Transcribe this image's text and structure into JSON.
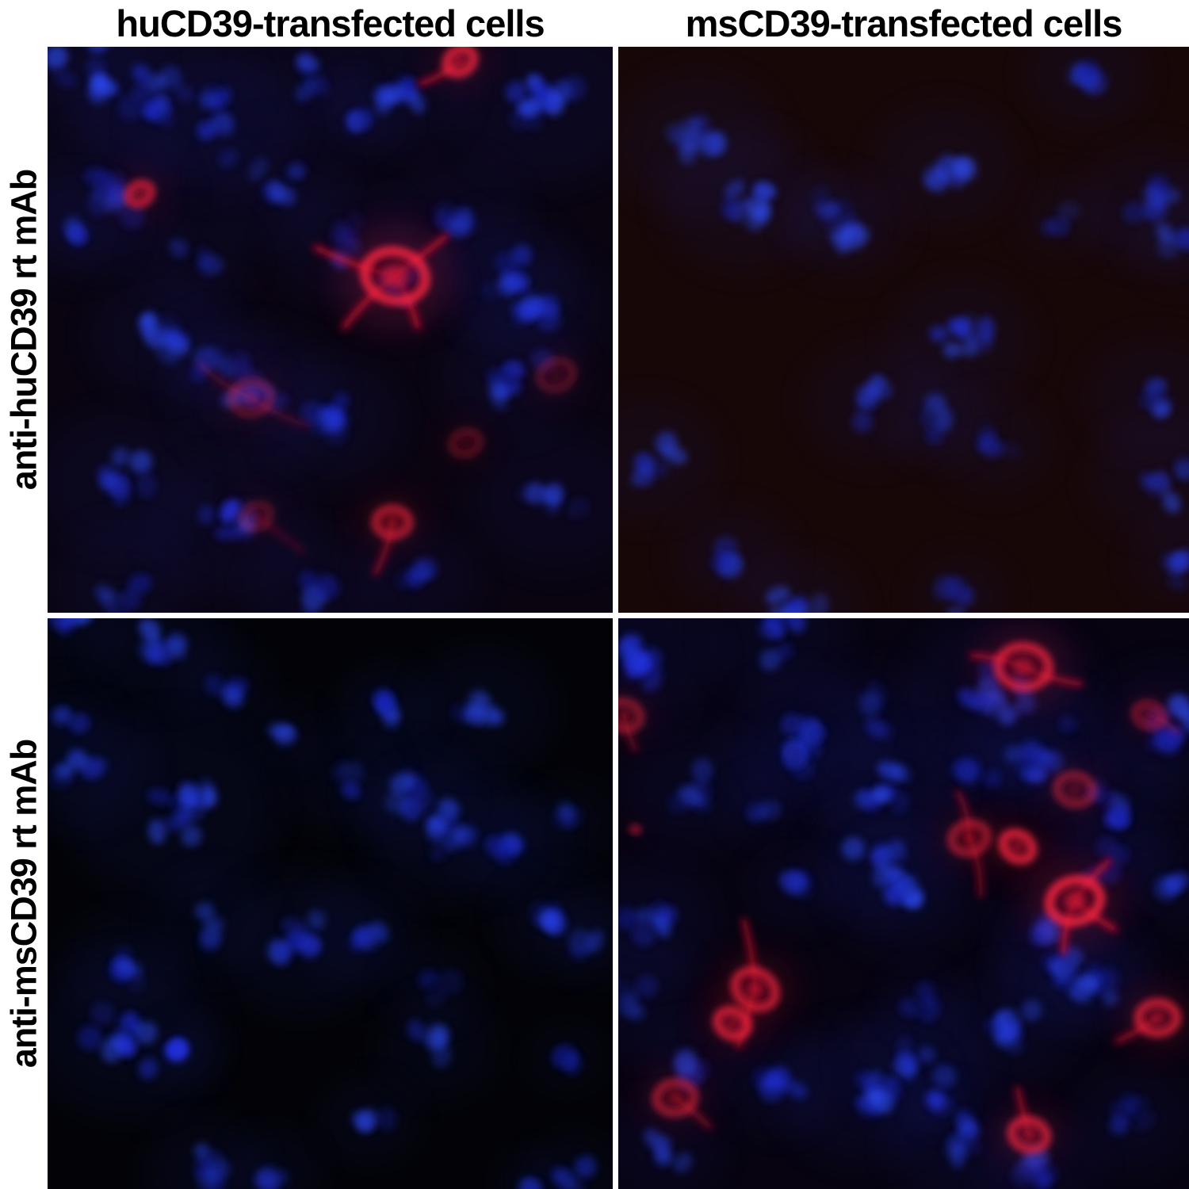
{
  "figure": {
    "col_headers": [
      "huCD39-transfected cells",
      "msCD39-transfected cells"
    ],
    "row_labels": [
      "anti-huCD39 rt mAb",
      "anti-msCD39 rt mAb"
    ],
    "colors": {
      "label_text": "#000000",
      "gutter": "#ffffff",
      "nucleus_shades": [
        "#1722b8",
        "#2133e2",
        "#2b45f2",
        "#121a88",
        "#3050ff"
      ],
      "haze": "#1b2bb0",
      "red_bright": "#ff2742",
      "red_mid": "#e0142e",
      "red_glow": "#c00e24",
      "red_fill": "#400812"
    },
    "panels": [
      {
        "id": "huCD39-cells_anti-huCD39-mAb",
        "col": 0,
        "row": 0,
        "red_staining_positive": true,
        "bg": "#0a0410",
        "clusters": [
          [
            7,
            4,
            8,
            6,
            0.75
          ],
          [
            20,
            8,
            10,
            8,
            0.65
          ],
          [
            30,
            14,
            8,
            7,
            0.6
          ],
          [
            45,
            6,
            5,
            5,
            0.6
          ],
          [
            62,
            8,
            8,
            6,
            0.7
          ],
          [
            88,
            10,
            12,
            8,
            0.7
          ],
          [
            55,
            13,
            4,
            4,
            0.5
          ],
          [
            40,
            24,
            6,
            6,
            0.5
          ],
          [
            10,
            26,
            9,
            7,
            0.65
          ],
          [
            5,
            32,
            5,
            5,
            0.5
          ],
          [
            72,
            30,
            6,
            6,
            0.5
          ],
          [
            26,
            38,
            4,
            5,
            0.45
          ],
          [
            52,
            34,
            5,
            6,
            0.55
          ],
          [
            62,
            42,
            6,
            5,
            0.8
          ],
          [
            80,
            40,
            8,
            6,
            0.6
          ],
          [
            86,
            46,
            7,
            6,
            0.6
          ],
          [
            20,
            51,
            8,
            6,
            0.6
          ],
          [
            30,
            56,
            5,
            5,
            0.5
          ],
          [
            37,
            62,
            8,
            7,
            0.6
          ],
          [
            50,
            66,
            8,
            6,
            0.65
          ],
          [
            82,
            58,
            8,
            6,
            0.6
          ],
          [
            13,
            77,
            8,
            7,
            0.6
          ],
          [
            32,
            85,
            8,
            7,
            0.65
          ],
          [
            90,
            80,
            6,
            7,
            0.5
          ],
          [
            13,
            95,
            6,
            6,
            0.55
          ],
          [
            48,
            96,
            5,
            6,
            0.5
          ],
          [
            66,
            94,
            5,
            5,
            0.5
          ]
        ],
        "red_cells": [
          [
            61.5,
            40.5,
            5.5,
            1.0,
            [
              [
                -14,
                -5
              ],
              [
                9,
                -7
              ],
              [
                4,
                9
              ],
              [
                -9,
                9
              ]
            ]
          ],
          [
            73,
            2.5,
            2.6,
            0.9,
            [
              [
                -7,
                4
              ]
            ]
          ],
          [
            16.3,
            26,
            2.2,
            0.85,
            []
          ],
          [
            36,
            62,
            3.5,
            0.35,
            [
              [
                -9,
                -6
              ],
              [
                10,
                5
              ]
            ]
          ],
          [
            61,
            84,
            3,
            0.7,
            [
              [
                -3,
                9
              ]
            ]
          ],
          [
            74,
            70,
            2.5,
            0.3,
            []
          ],
          [
            90,
            58,
            3,
            0.3,
            []
          ],
          [
            37,
            83,
            2.5,
            0.3,
            [
              [
                8,
                6
              ]
            ]
          ]
        ]
      },
      {
        "id": "msCD39-cells_anti-huCD39-mAb",
        "col": 1,
        "row": 0,
        "red_staining_positive": false,
        "bg": "#170707",
        "clusters": [
          [
            14,
            17,
            8,
            7,
            0.6
          ],
          [
            22,
            27,
            8,
            7,
            0.6
          ],
          [
            40,
            32,
            5,
            5,
            0.5
          ],
          [
            57,
            21,
            6,
            6,
            0.6
          ],
          [
            82,
            5,
            5,
            5,
            0.6
          ],
          [
            93,
            28,
            6,
            6,
            0.55
          ],
          [
            99,
            33,
            4,
            5,
            0.5
          ],
          [
            37,
            29,
            4,
            4,
            0.5
          ],
          [
            78,
            30,
            4,
            4,
            0.4
          ],
          [
            5,
            73,
            6,
            6,
            0.6
          ],
          [
            60,
            52,
            8,
            6,
            0.6
          ],
          [
            45,
            63,
            6,
            6,
            0.55
          ],
          [
            56,
            66,
            4,
            4,
            0.7
          ],
          [
            66,
            70,
            4,
            5,
            0.45
          ],
          [
            94,
            62,
            6,
            6,
            0.5
          ],
          [
            95,
            76,
            6,
            6,
            0.55
          ],
          [
            20,
            90,
            5,
            5,
            0.55
          ],
          [
            32,
            99,
            6,
            5,
            0.6
          ],
          [
            98,
            91,
            4,
            4,
            0.5
          ],
          [
            60,
            97,
            4,
            4,
            0.45
          ]
        ],
        "red_cells": []
      },
      {
        "id": "huCD39-cells_anti-msCD39-mAb",
        "col": 0,
        "row": 1,
        "red_staining_positive": false,
        "bg": "#030307",
        "clusters": [
          [
            5,
            2,
            4,
            4,
            0.6
          ],
          [
            20,
            5,
            8,
            6,
            0.65
          ],
          [
            31,
            12,
            4,
            4,
            0.55
          ],
          [
            3,
            18,
            4,
            4,
            0.5
          ],
          [
            6,
            26,
            6,
            6,
            0.55
          ],
          [
            22,
            33,
            12,
            9,
            0.7
          ],
          [
            42,
            20,
            3,
            3,
            0.5
          ],
          [
            60,
            16,
            4,
            4,
            0.9
          ],
          [
            77,
            16,
            7,
            6,
            0.6
          ],
          [
            52,
            28,
            4,
            5,
            0.45
          ],
          [
            64,
            31,
            6,
            5,
            0.6
          ],
          [
            71,
            37,
            9,
            7,
            0.7
          ],
          [
            81,
            39,
            5,
            5,
            0.55
          ],
          [
            92,
            36,
            3,
            4,
            0.4
          ],
          [
            29,
            53,
            4,
            5,
            0.45
          ],
          [
            45,
            57,
            8,
            7,
            0.65
          ],
          [
            55,
            55,
            5,
            5,
            0.55
          ],
          [
            13,
            61,
            6,
            5,
            0.55
          ],
          [
            14,
            73,
            11,
            8,
            0.65
          ],
          [
            24,
            76,
            3,
            3,
            0.85
          ],
          [
            68,
            64,
            3,
            4,
            0.4
          ],
          [
            69,
            75,
            5,
            5,
            0.45
          ],
          [
            90,
            53,
            6,
            5,
            0.6
          ],
          [
            97,
            56,
            3,
            4,
            0.45
          ],
          [
            92,
            77,
            3,
            3,
            0.5
          ],
          [
            57,
            88,
            4,
            4,
            0.55
          ],
          [
            28,
            97,
            6,
            5,
            0.6
          ],
          [
            93,
            98,
            4,
            4,
            0.5
          ],
          [
            86,
            99,
            3,
            3,
            0.45
          ],
          [
            40,
            97,
            4,
            4,
            0.5
          ]
        ],
        "red_cells": []
      },
      {
        "id": "msCD39-cells_anti-msCD39-mAb",
        "col": 1,
        "row": 1,
        "red_staining_positive": true,
        "bg": "#070310",
        "clusters": [
          [
            3,
            7,
            9,
            7,
            0.75
          ],
          [
            28,
            3,
            6,
            6,
            0.6
          ],
          [
            33,
            22,
            9,
            7,
            0.75
          ],
          [
            30,
            24,
            3,
            3,
            1.0
          ],
          [
            13,
            30,
            5,
            6,
            0.55
          ],
          [
            45,
            17,
            4,
            5,
            0.5
          ],
          [
            47,
            30,
            7,
            6,
            0.7
          ],
          [
            46,
            42,
            6,
            6,
            0.65
          ],
          [
            50,
            48,
            7,
            6,
            0.75
          ],
          [
            67,
            13,
            10,
            8,
            0.7
          ],
          [
            74,
            22,
            6,
            6,
            0.6
          ],
          [
            73,
            27,
            3,
            3,
            0.9
          ],
          [
            62,
            27,
            4,
            5,
            0.5
          ],
          [
            96,
            19,
            7,
            6,
            0.7
          ],
          [
            87,
            33,
            7,
            6,
            0.65
          ],
          [
            85,
            43,
            5,
            5,
            0.5
          ],
          [
            75,
            55,
            5,
            5,
            0.5
          ],
          [
            79,
            61,
            7,
            6,
            0.65
          ],
          [
            85,
            64,
            6,
            5,
            0.6
          ],
          [
            68,
            72,
            7,
            6,
            0.65
          ],
          [
            53,
            67,
            3,
            3,
            0.8
          ],
          [
            52,
            78,
            6,
            6,
            0.6
          ],
          [
            43,
            83,
            9,
            7,
            0.7
          ],
          [
            60,
            93,
            7,
            6,
            0.65
          ],
          [
            74,
            96,
            6,
            5,
            0.6
          ],
          [
            28,
            81,
            5,
            5,
            0.6
          ],
          [
            5,
            53,
            7,
            6,
            0.6
          ],
          [
            2,
            66,
            5,
            6,
            0.55
          ],
          [
            8,
            93,
            5,
            5,
            0.5
          ],
          [
            25,
            33,
            3,
            3,
            0.5
          ],
          [
            31,
            47,
            4,
            4,
            0.5
          ],
          [
            56,
            85,
            2,
            2,
            1.0
          ],
          [
            12,
            78,
            4,
            4,
            0.5
          ],
          [
            90,
            88,
            5,
            5,
            0.55
          ],
          [
            97,
            47,
            4,
            4,
            0.5
          ]
        ],
        "red_cells": [
          [
            71,
            8.5,
            4.5,
            0.85,
            [
              [
                10,
                3
              ],
              [
                -9,
                -2
              ]
            ]
          ],
          [
            93,
            17,
            2.5,
            0.45,
            [
              [
                5,
                3
              ]
            ]
          ],
          [
            1,
            17,
            3,
            0.5,
            [
              [
                2,
                6
              ]
            ]
          ],
          [
            80,
            30,
            3.2,
            0.5,
            []
          ],
          [
            61.5,
            38.5,
            3.2,
            0.6,
            [
              [
                2,
                10
              ],
              [
                -2,
                -8
              ]
            ]
          ],
          [
            70,
            40,
            2.8,
            0.9,
            []
          ],
          [
            80,
            49.5,
            4.6,
            1.0,
            [
              [
                6,
                -7
              ],
              [
                -2,
                9
              ],
              [
                7,
                5
              ]
            ]
          ],
          [
            94.5,
            70,
            3.4,
            0.8,
            [
              [
                -7,
                4
              ]
            ]
          ],
          [
            24,
            65,
            3.8,
            0.8,
            [
              [
                -2,
                -12
              ],
              [
                -3,
                10
              ]
            ]
          ],
          [
            20,
            71,
            2.8,
            0.85,
            []
          ],
          [
            10,
            84,
            3.4,
            0.6,
            [
              [
                6,
                5
              ]
            ]
          ],
          [
            72,
            90.5,
            3.2,
            0.8,
            [
              [
                -2,
                -8
              ]
            ]
          ],
          [
            3,
            37,
            0.7,
            1.0,
            []
          ]
        ]
      }
    ]
  }
}
